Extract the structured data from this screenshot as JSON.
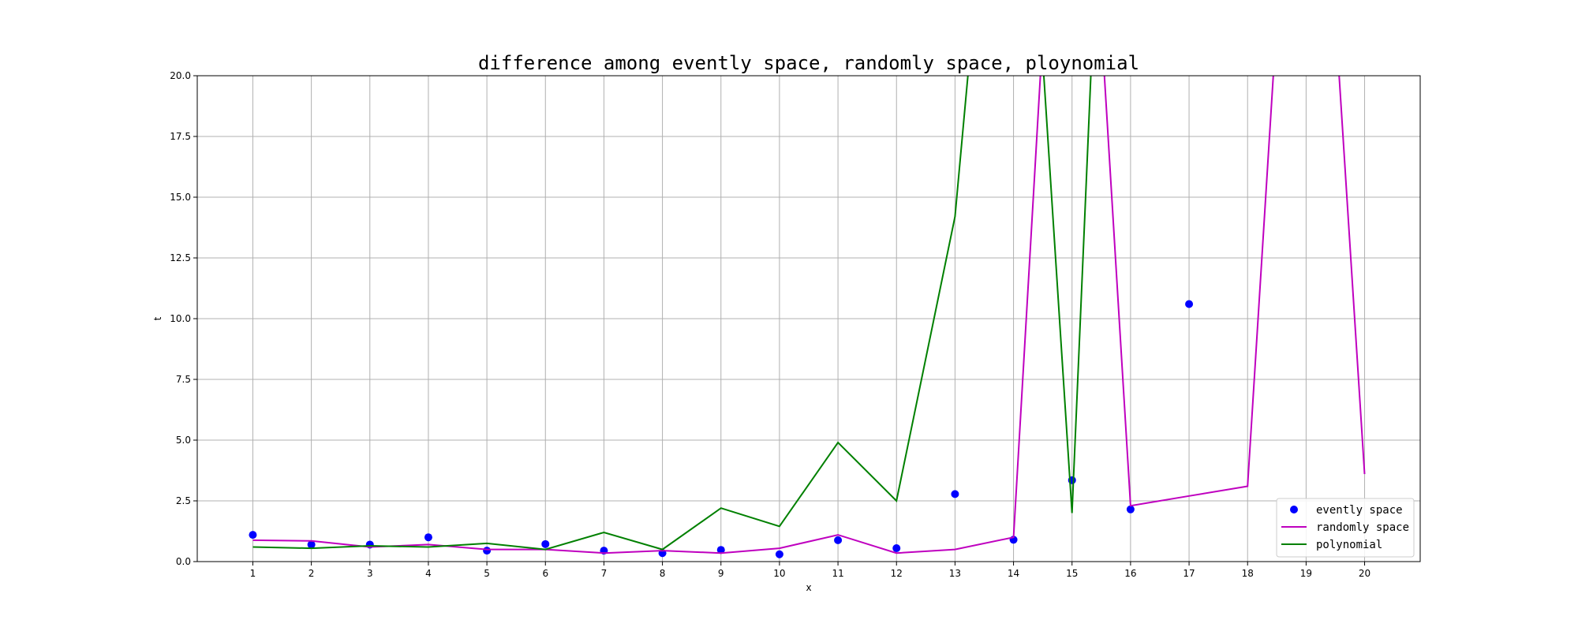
{
  "chart_data": {
    "type": "line",
    "title": "difference among evently space, randomly space, ploynomial",
    "xlabel": "x",
    "ylabel": "t",
    "xlim": [
      0.05,
      20.95
    ],
    "ylim": [
      0,
      20
    ],
    "xticks": [
      1,
      2,
      3,
      4,
      5,
      6,
      7,
      8,
      9,
      10,
      11,
      12,
      13,
      14,
      15,
      16,
      17,
      18,
      19,
      20
    ],
    "yticks": [
      0.0,
      2.5,
      5.0,
      7.5,
      10.0,
      12.5,
      15.0,
      17.5,
      20.0
    ],
    "ytick_labels": [
      "0.0",
      "2.5",
      "5.0",
      "7.5",
      "10.0",
      "12.5",
      "15.0",
      "17.5",
      "20.0"
    ],
    "grid": true,
    "legend_position": "lower-right",
    "series": [
      {
        "name": "evently space",
        "kind": "scatter",
        "color": "#0000ff",
        "x": [
          1,
          2,
          3,
          4,
          5,
          6,
          7,
          8,
          9,
          10,
          11,
          12,
          13,
          14,
          15,
          16,
          17
        ],
        "y": [
          1.1,
          0.7,
          0.7,
          1.0,
          0.45,
          0.72,
          0.45,
          0.35,
          0.48,
          0.3,
          0.88,
          0.55,
          2.78,
          0.9,
          3.35,
          2.15,
          10.6
        ]
      },
      {
        "name": "randomly space",
        "kind": "line",
        "color": "#bf00bf",
        "x": [
          1,
          2,
          3,
          4,
          5,
          6,
          7,
          8,
          9,
          10,
          11,
          12,
          13,
          14,
          14.7,
          15.3,
          16,
          17,
          18,
          18.7,
          19.3,
          20
        ],
        "y": [
          0.88,
          0.85,
          0.6,
          0.7,
          0.5,
          0.5,
          0.35,
          0.45,
          0.35,
          0.55,
          1.1,
          0.35,
          0.5,
          1.0,
          30,
          30,
          2.3,
          2.7,
          3.1,
          30,
          30,
          3.6
        ]
      },
      {
        "name": "polynomial",
        "kind": "line",
        "color": "#008000",
        "x": [
          1,
          2,
          3,
          4,
          5,
          6,
          7,
          8,
          9,
          10,
          11,
          12,
          13,
          13.6,
          14.25,
          15,
          15.5
        ],
        "y": [
          0.6,
          0.55,
          0.65,
          0.6,
          0.75,
          0.5,
          1.2,
          0.5,
          2.2,
          1.45,
          4.9,
          2.5,
          14.2,
          30,
          30,
          2.0,
          30
        ]
      }
    ]
  }
}
